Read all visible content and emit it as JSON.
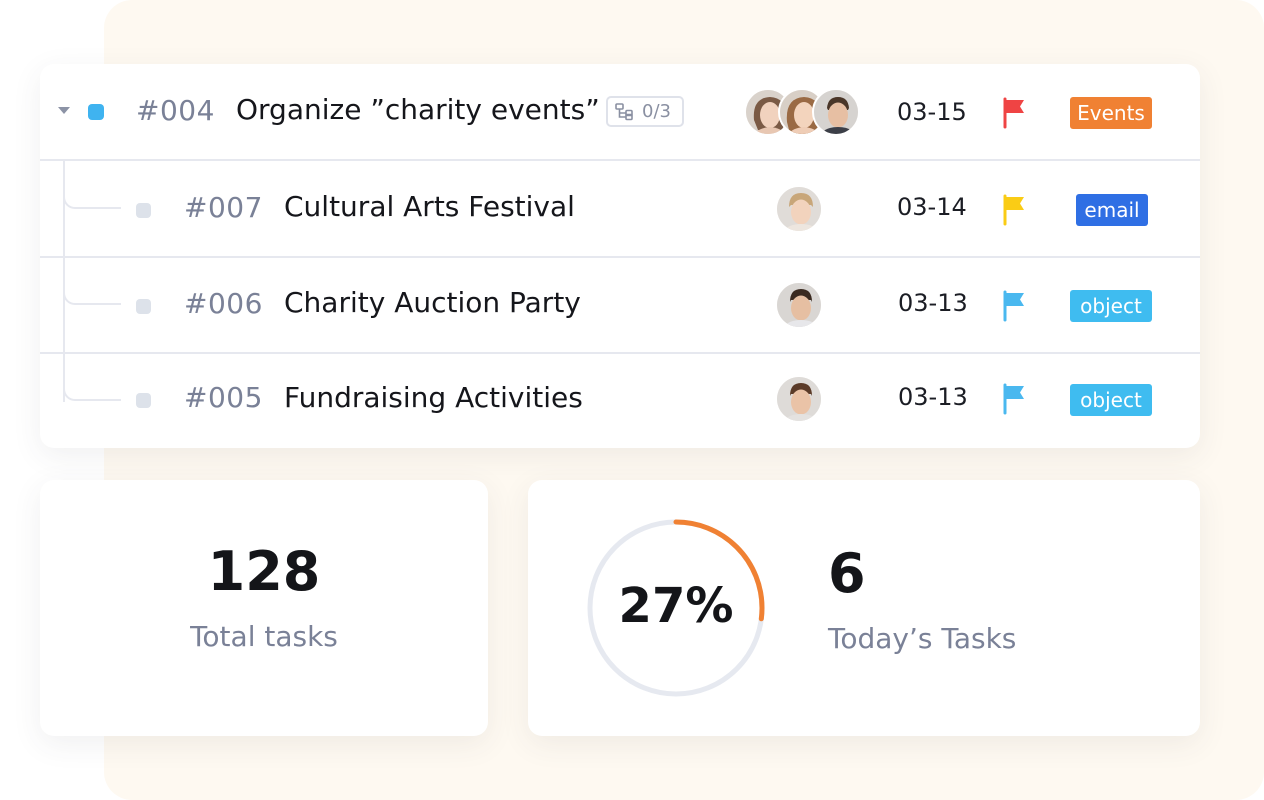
{
  "parent_task": {
    "id": "#004",
    "title": "Organize ”charity events”",
    "subtask_progress": "0/3",
    "date": "03-15",
    "flag_color": "#ef4444",
    "tag": {
      "label": "Events",
      "color": "#f08133"
    },
    "assignees": [
      "avatar-woman-1",
      "avatar-woman-2",
      "avatar-man-1"
    ]
  },
  "subtasks": [
    {
      "id": "#007",
      "title": "Cultural Arts Festival",
      "date": "03-14",
      "flag_color": "#facc15",
      "tag": {
        "label": "email",
        "color": "#2f6fe4"
      },
      "assignee": "avatar-man-blond"
    },
    {
      "id": "#006",
      "title": "Charity Auction Party",
      "date": "03-13",
      "flag_color": "#4ab8ef",
      "tag": {
        "label": "object",
        "color": "#3fbcf0"
      },
      "assignee": "avatar-man-dark"
    },
    {
      "id": "#005",
      "title": "Fundraising Activities",
      "date": "03-13",
      "flag_color": "#4ab8ef",
      "tag": {
        "label": "object",
        "color": "#3fbcf0"
      },
      "assignee": "avatar-man-brown"
    }
  ],
  "stats": {
    "total_tasks": {
      "value": "128",
      "label": "Total tasks"
    },
    "today_tasks": {
      "percent_text": "27%",
      "percent_value": 27,
      "value": "6",
      "label": "Today’s Tasks"
    },
    "ring_colors": {
      "track": "#e6e9f0",
      "progress": "#f08133"
    }
  }
}
